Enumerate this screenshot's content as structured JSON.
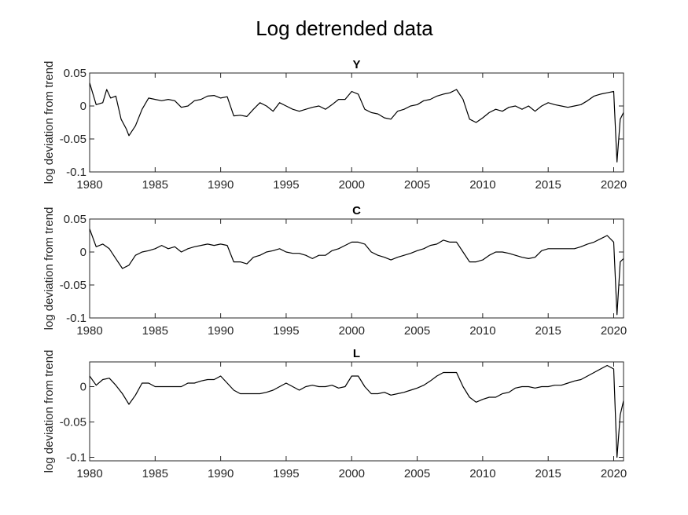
{
  "figure": {
    "title": "Log detrended data"
  },
  "colors": {
    "line": "#000000",
    "axis": "#262626",
    "background": "#ffffff"
  },
  "chart_data": [
    {
      "type": "line",
      "title": "Y",
      "xlabel": "",
      "ylabel": "log deviation from trend",
      "xlim": [
        1980,
        2020.75
      ],
      "ylim": [
        -0.1,
        0.05
      ],
      "x_ticks": [
        1980,
        1985,
        1990,
        1995,
        2000,
        2005,
        2010,
        2015,
        2020
      ],
      "x_tick_labels": [
        "1980",
        "1985",
        "1990",
        "1995",
        "2000",
        "2005",
        "2010",
        "2015",
        "2020"
      ],
      "y_ticks": [
        -0.1,
        -0.05,
        0,
        0.05
      ],
      "y_tick_labels": [
        "-0.1",
        "-0.05",
        "0",
        "0.05"
      ],
      "grid": false,
      "series": [
        {
          "x": [
            1980.0,
            1980.5,
            1981.0,
            1981.3,
            1981.6,
            1982.0,
            1982.4,
            1982.8,
            1983.0,
            1983.5,
            1984.0,
            1984.5,
            1985.0,
            1985.5,
            1986.0,
            1986.5,
            1987.0,
            1987.5,
            1988.0,
            1988.5,
            1989.0,
            1989.5,
            1990.0,
            1990.5,
            1991.0,
            1991.5,
            1992.0,
            1992.5,
            1993.0,
            1993.5,
            1994.0,
            1994.5,
            1995.0,
            1995.5,
            1996.0,
            1996.5,
            1997.0,
            1997.5,
            1998.0,
            1998.5,
            1999.0,
            1999.5,
            2000.0,
            2000.5,
            2001.0,
            2001.5,
            2002.0,
            2002.5,
            2003.0,
            2003.5,
            2004.0,
            2004.5,
            2005.0,
            2005.5,
            2006.0,
            2006.5,
            2007.0,
            2007.5,
            2008.0,
            2008.5,
            2009.0,
            2009.5,
            2010.0,
            2010.5,
            2011.0,
            2011.5,
            2012.0,
            2012.5,
            2013.0,
            2013.5,
            2014.0,
            2014.5,
            2015.0,
            2015.5,
            2016.0,
            2016.5,
            2017.0,
            2017.5,
            2018.0,
            2018.5,
            2019.0,
            2019.5,
            2020.0,
            2020.25,
            2020.5,
            2020.75
          ],
          "values": [
            0.035,
            0.002,
            0.005,
            0.025,
            0.012,
            0.015,
            -0.02,
            -0.035,
            -0.045,
            -0.03,
            -0.005,
            0.012,
            0.01,
            0.008,
            0.01,
            0.008,
            -0.002,
            0.0,
            0.008,
            0.01,
            0.015,
            0.016,
            0.012,
            0.014,
            -0.015,
            -0.014,
            -0.016,
            -0.005,
            0.005,
            0.0,
            -0.008,
            0.005,
            0.0,
            -0.005,
            -0.008,
            -0.005,
            -0.002,
            0.0,
            -0.005,
            0.002,
            0.01,
            0.01,
            0.022,
            0.018,
            -0.005,
            -0.01,
            -0.012,
            -0.018,
            -0.02,
            -0.008,
            -0.005,
            0.0,
            0.002,
            0.008,
            0.01,
            0.015,
            0.018,
            0.02,
            0.025,
            0.01,
            -0.02,
            -0.025,
            -0.018,
            -0.01,
            -0.005,
            -0.008,
            -0.002,
            0.0,
            -0.005,
            0.0,
            -0.008,
            0.0,
            0.005,
            0.002,
            0.0,
            -0.002,
            0.0,
            0.002,
            0.008,
            0.015,
            0.018,
            0.02,
            0.022,
            -0.085,
            -0.02,
            -0.01
          ]
        }
      ]
    },
    {
      "type": "line",
      "title": "C",
      "xlabel": "",
      "ylabel": "log deviation from trend",
      "xlim": [
        1980,
        2020.75
      ],
      "ylim": [
        -0.1,
        0.05
      ],
      "x_ticks": [
        1980,
        1985,
        1990,
        1995,
        2000,
        2005,
        2010,
        2015,
        2020
      ],
      "x_tick_labels": [
        "1980",
        "1985",
        "1990",
        "1995",
        "2000",
        "2005",
        "2010",
        "2015",
        "2020"
      ],
      "y_ticks": [
        -0.1,
        -0.05,
        0,
        0.05
      ],
      "y_tick_labels": [
        "-0.1",
        "-0.05",
        "0",
        "0.05"
      ],
      "grid": false,
      "series": [
        {
          "x": [
            1980.0,
            1980.5,
            1981.0,
            1981.5,
            1982.0,
            1982.5,
            1983.0,
            1983.5,
            1984.0,
            1984.5,
            1985.0,
            1985.5,
            1986.0,
            1986.5,
            1987.0,
            1987.5,
            1988.0,
            1988.5,
            1989.0,
            1989.5,
            1990.0,
            1990.5,
            1991.0,
            1991.5,
            1992.0,
            1992.5,
            1993.0,
            1993.5,
            1994.0,
            1994.5,
            1995.0,
            1995.5,
            1996.0,
            1996.5,
            1997.0,
            1997.5,
            1998.0,
            1998.5,
            1999.0,
            1999.5,
            2000.0,
            2000.5,
            2001.0,
            2001.5,
            2002.0,
            2002.5,
            2003.0,
            2003.5,
            2004.0,
            2004.5,
            2005.0,
            2005.5,
            2006.0,
            2006.5,
            2007.0,
            2007.5,
            2008.0,
            2008.5,
            2009.0,
            2009.5,
            2010.0,
            2010.5,
            2011.0,
            2011.5,
            2012.0,
            2012.5,
            2013.0,
            2013.5,
            2014.0,
            2014.5,
            2015.0,
            2015.5,
            2016.0,
            2016.5,
            2017.0,
            2017.5,
            2018.0,
            2018.5,
            2019.0,
            2019.5,
            2020.0,
            2020.25,
            2020.5,
            2020.75
          ],
          "values": [
            0.035,
            0.008,
            0.012,
            0.005,
            -0.01,
            -0.025,
            -0.02,
            -0.005,
            0.0,
            0.002,
            0.005,
            0.01,
            0.005,
            0.008,
            0.0,
            0.005,
            0.008,
            0.01,
            0.012,
            0.01,
            0.012,
            0.01,
            -0.015,
            -0.015,
            -0.018,
            -0.008,
            -0.005,
            0.0,
            0.002,
            0.005,
            0.0,
            -0.002,
            -0.002,
            -0.005,
            -0.01,
            -0.005,
            -0.005,
            0.002,
            0.005,
            0.01,
            0.015,
            0.015,
            0.012,
            0.0,
            -0.005,
            -0.008,
            -0.012,
            -0.008,
            -0.005,
            -0.002,
            0.002,
            0.005,
            0.01,
            0.012,
            0.018,
            0.015,
            0.015,
            0.0,
            -0.015,
            -0.015,
            -0.012,
            -0.005,
            0.0,
            0.0,
            -0.002,
            -0.005,
            -0.008,
            -0.01,
            -0.008,
            0.002,
            0.005,
            0.005,
            0.005,
            0.005,
            0.005,
            0.008,
            0.012,
            0.015,
            0.02,
            0.025,
            0.015,
            -0.095,
            -0.015,
            -0.01
          ]
        }
      ]
    },
    {
      "type": "line",
      "title": "L",
      "xlabel": "",
      "ylabel": "log deviation from trend",
      "xlim": [
        1980,
        2020.75
      ],
      "ylim": [
        -0.105,
        0.035
      ],
      "x_ticks": [
        1980,
        1985,
        1990,
        1995,
        2000,
        2005,
        2010,
        2015,
        2020
      ],
      "x_tick_labels": [
        "1980",
        "1985",
        "1990",
        "1995",
        "2000",
        "2005",
        "2010",
        "2015",
        "2020"
      ],
      "y_ticks": [
        -0.1,
        -0.05,
        0
      ],
      "y_tick_labels": [
        "-0.1",
        "-0.05",
        "0"
      ],
      "grid": false,
      "series": [
        {
          "x": [
            1980.0,
            1980.5,
            1981.0,
            1981.5,
            1982.0,
            1982.5,
            1983.0,
            1983.5,
            1984.0,
            1984.5,
            1985.0,
            1985.5,
            1986.0,
            1986.5,
            1987.0,
            1987.5,
            1988.0,
            1988.5,
            1989.0,
            1989.5,
            1990.0,
            1990.5,
            1991.0,
            1991.5,
            1992.0,
            1992.5,
            1993.0,
            1993.5,
            1994.0,
            1994.5,
            1995.0,
            1995.5,
            1996.0,
            1996.5,
            1997.0,
            1997.5,
            1998.0,
            1998.5,
            1999.0,
            1999.5,
            2000.0,
            2000.5,
            2001.0,
            2001.5,
            2002.0,
            2002.5,
            2003.0,
            2003.5,
            2004.0,
            2004.5,
            2005.0,
            2005.5,
            2006.0,
            2006.5,
            2007.0,
            2007.5,
            2008.0,
            2008.5,
            2009.0,
            2009.5,
            2010.0,
            2010.5,
            2011.0,
            2011.5,
            2012.0,
            2012.5,
            2013.0,
            2013.5,
            2014.0,
            2014.5,
            2015.0,
            2015.5,
            2016.0,
            2016.5,
            2017.0,
            2017.5,
            2018.0,
            2018.5,
            2019.0,
            2019.5,
            2020.0,
            2020.25,
            2020.5,
            2020.75
          ],
          "values": [
            0.015,
            0.002,
            0.01,
            0.012,
            0.002,
            -0.01,
            -0.025,
            -0.012,
            0.005,
            0.005,
            0.0,
            0.0,
            0.0,
            0.0,
            0.0,
            0.005,
            0.005,
            0.008,
            0.01,
            0.01,
            0.015,
            0.005,
            -0.005,
            -0.01,
            -0.01,
            -0.01,
            -0.01,
            -0.008,
            -0.005,
            0.0,
            0.005,
            0.0,
            -0.005,
            0.0,
            0.002,
            0.0,
            0.0,
            0.002,
            -0.002,
            0.0,
            0.015,
            0.015,
            0.0,
            -0.01,
            -0.01,
            -0.008,
            -0.012,
            -0.01,
            -0.008,
            -0.005,
            -0.002,
            0.002,
            0.008,
            0.015,
            0.02,
            0.02,
            0.02,
            0.0,
            -0.015,
            -0.022,
            -0.018,
            -0.015,
            -0.015,
            -0.01,
            -0.008,
            -0.002,
            0.0,
            0.0,
            -0.002,
            0.0,
            0.0,
            0.002,
            0.002,
            0.005,
            0.008,
            0.01,
            0.015,
            0.02,
            0.025,
            0.03,
            0.025,
            -0.1,
            -0.04,
            -0.02
          ]
        }
      ]
    }
  ]
}
